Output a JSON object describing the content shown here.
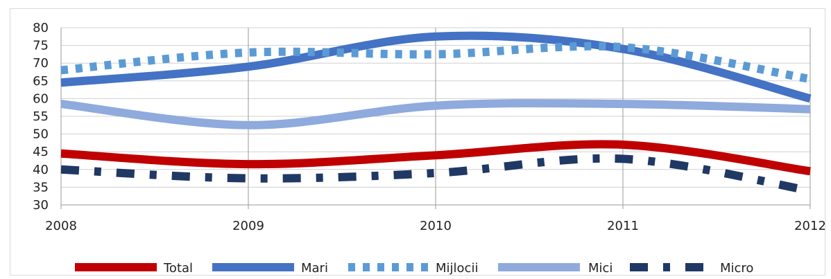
{
  "chart_data": {
    "type": "line",
    "title": "",
    "xlabel": "",
    "ylabel": "",
    "x": [
      2008,
      2009,
      2010,
      2011,
      2012
    ],
    "x_tick_labels": [
      "2008",
      "2009",
      "2010",
      "2011",
      "2012"
    ],
    "ylim": [
      30,
      80
    ],
    "y_ticks": [
      30,
      35,
      40,
      45,
      50,
      55,
      60,
      65,
      70,
      75,
      80
    ],
    "y_tick_labels": [
      "30",
      "35",
      "40",
      "45",
      "50",
      "55",
      "60",
      "65",
      "70",
      "75",
      "80"
    ],
    "grid": true,
    "legend_position": "bottom",
    "series": [
      {
        "name": "Total",
        "values": [
          44.5,
          41.5,
          44.0,
          47.0,
          39.5
        ],
        "color": "#c00000",
        "style": "solid"
      },
      {
        "name": "Mari",
        "values": [
          64.5,
          69.0,
          77.5,
          74.0,
          60.0
        ],
        "color": "#4472c4",
        "style": "solid"
      },
      {
        "name": "Mijlocii",
        "values": [
          68.0,
          73.0,
          72.5,
          74.5,
          65.5
        ],
        "color": "#5b9bd5",
        "style": "dotted"
      },
      {
        "name": "Mici",
        "values": [
          58.5,
          52.5,
          58.0,
          58.5,
          57.0
        ],
        "color": "#8faadc",
        "style": "solid"
      },
      {
        "name": "Micro",
        "values": [
          40.0,
          37.5,
          39.0,
          43.0,
          34.0
        ],
        "color": "#203864",
        "style": "dashdot"
      }
    ]
  }
}
